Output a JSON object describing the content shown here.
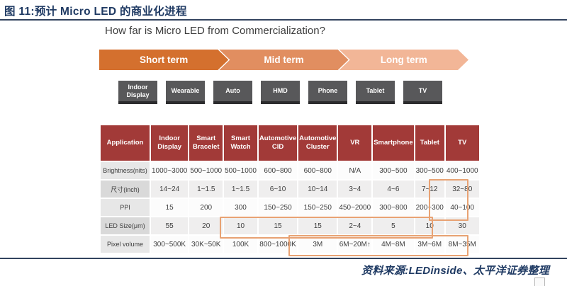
{
  "figure": {
    "caption": "图 11:预计 Micro LED 的商业化进程",
    "source": "资料来源:LEDinside、太平洋证券整理"
  },
  "slide": {
    "title": "How far is Micro LED from Commercialization?",
    "timeline": [
      {
        "label": "Short term",
        "color": "#d4702e"
      },
      {
        "label": "Mid term",
        "color": "#e18e60"
      },
      {
        "label": "Long term",
        "color": "#f2b697"
      }
    ],
    "devices": [
      "Indoor Display",
      "Wearable",
      "Auto",
      "HMD",
      "Phone",
      "Tablet",
      "TV"
    ]
  },
  "chart_data": {
    "type": "table",
    "title": "How far is Micro LED from Commercialization?",
    "header_color": "#a23a38",
    "highlight_color": "#e8a273",
    "columns": [
      "Application",
      "Indoor Display",
      "Smart Bracelet",
      "Smart Watch",
      "Automotive CID",
      "Automotive Cluster",
      "VR",
      "Smartphone",
      "Tablet",
      "TV"
    ],
    "rows": [
      {
        "label": "Brightness(nits)",
        "values": [
          "1000~3000",
          "500~1000",
          "500~1000",
          "600~800",
          "600~800",
          "N/A",
          "300~500",
          "300~500",
          "400~1000"
        ]
      },
      {
        "label": "尺寸(inch)",
        "values": [
          "14~24",
          "1~1.5",
          "1~1.5",
          "6~10",
          "10~14",
          "3~4",
          "4~6",
          "7~12",
          "32~80"
        ]
      },
      {
        "label": "PPI",
        "values": [
          "15",
          "200",
          "300",
          "150~250",
          "150~250",
          "450~2000",
          "300~800",
          "200~300",
          "40~100"
        ]
      },
      {
        "label": "LED Size(μm)",
        "values": [
          "55",
          "20",
          "10",
          "15",
          "15",
          "2~4",
          "5",
          "10",
          "30"
        ]
      },
      {
        "label": "Pixel volume",
        "values": [
          "300~500K",
          "30K~50K",
          "100K",
          "800~1000K",
          "3M",
          "6M~20M↑",
          "4M~8M",
          "3M~6M",
          "8M~35M"
        ]
      }
    ],
    "highlights": [
      {
        "name": "tv-size-ppi",
        "description": "TV column, 尺寸 and PPI rows framed"
      },
      {
        "name": "led-size",
        "description": "LED Size row, Smart Watch through Tablet framed"
      },
      {
        "name": "pixel-volume",
        "description": "Pixel volume row, Automotive Cluster through TV framed"
      }
    ]
  }
}
